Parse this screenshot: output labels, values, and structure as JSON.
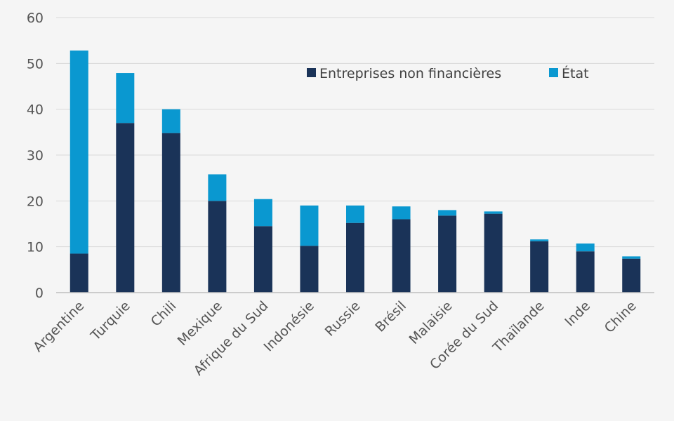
{
  "chart_data": {
    "type": "bar",
    "stacked": true,
    "title": "",
    "xlabel": "",
    "ylabel": "",
    "ylim": [
      0,
      60
    ],
    "yticks": [
      "0",
      "10",
      "20",
      "30",
      "40",
      "50",
      "60"
    ],
    "grid": true,
    "legend_position": "top-right",
    "categories": [
      "Argentine",
      "Turquie",
      "Chili",
      "Mexique",
      "Afrique du Sud",
      "Indonésie",
      "Russie",
      "Brésil",
      "Malaisie",
      "Corée du Sud",
      "Thaïlande",
      "Inde",
      "Chine"
    ],
    "series": [
      {
        "name": "Entreprises non financières",
        "color": "#1a3358",
        "values": [
          8.5,
          37,
          34.8,
          20,
          14.5,
          10.2,
          15.2,
          16,
          16.8,
          17.2,
          11.2,
          9,
          7.4
        ]
      },
      {
        "name": "État",
        "color": "#0a98d0",
        "values": [
          44.3,
          10.9,
          5.2,
          5.8,
          5.9,
          8.8,
          3.8,
          2.8,
          1.2,
          0.5,
          0.4,
          1.7,
          0.5
        ]
      }
    ]
  }
}
